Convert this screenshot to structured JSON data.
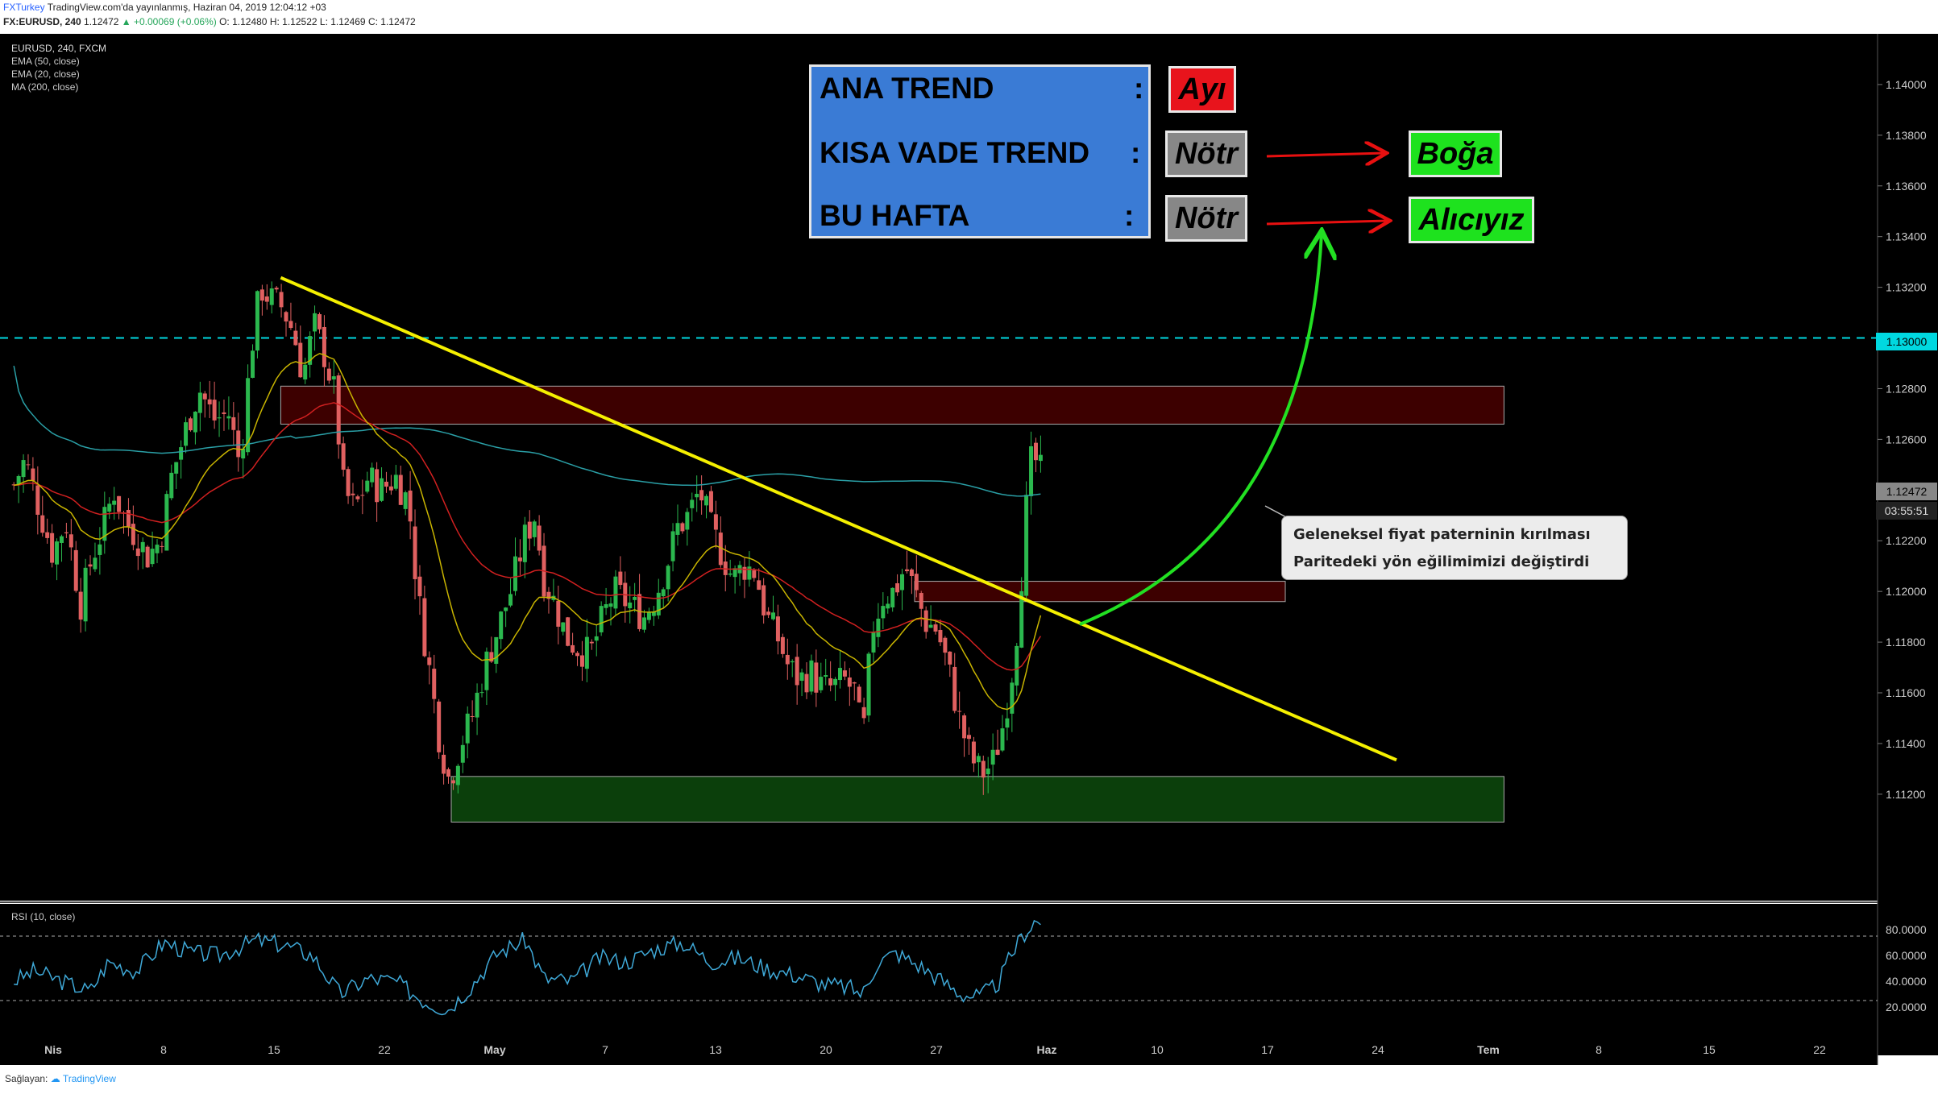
{
  "header": {
    "brand": "FXTurkey",
    "published": "TradingView.com'da yayınlanmış, Haziran 04, 2019 12:04:12 +03",
    "symbol": "FX:EURUSD, 240",
    "ohlc": "1.12472",
    "change": "▲ +0.00069 (+0.06%)",
    "o": "O: 1.12480",
    "h": "H: 1.12522",
    "l": "L: 1.12469",
    "c": "C: 1.12472"
  },
  "legend": {
    "title": "EURUSD, 240, FXCM",
    "ema50": "EMA (50, close)",
    "ema20": "EMA (20, close)",
    "ma200": "MA (200, close)",
    "rsi": "RSI (10, close)"
  },
  "footer": {
    "label": "Sağlayan:",
    "tv": "TradingView"
  },
  "info_box": {
    "rows": [
      {
        "label": "ANA TREND",
        "colon": ":",
        "status": "Ayı",
        "status_color": "#e8141c"
      },
      {
        "label": "KISA VADE TREND",
        "colon": ":",
        "status": "Nötr",
        "status_color": "#878787",
        "target": "Boğa",
        "target_color": "#1ee21e"
      },
      {
        "label": "BU HAFTA",
        "colon": ":",
        "status": "Nötr",
        "status_color": "#878787",
        "target": "Alıcıyız",
        "target_color": "#1ee21e"
      }
    ]
  },
  "annotation": {
    "line1": "Geleneksel fiyat paterninin kırılması",
    "line2": "Paritedeki yön eğilimimizi değiştirdi"
  },
  "price_tags": {
    "level": "1.13000",
    "last": "1.12472",
    "countdown": "03:55:51"
  },
  "colors": {
    "background": "#000000",
    "candle_up": "#2bb84e",
    "candle_down": "#e06060",
    "trendline": "#f5f000",
    "ema50": "#d02020",
    "ema20": "#c8b400",
    "ma200": "#2a9fa6",
    "rsi": "#3fa9d8",
    "resistance_zone": "#3d0000",
    "support_zone": "#0b3f0b",
    "level_line": "#00d8e0",
    "arrow_green": "#22e022",
    "arrow_red": "#e81010"
  },
  "chart_data": {
    "type": "candlestick",
    "symbol": "EURUSD, 240, FXCM",
    "x_ticks": [
      "Nis",
      "8",
      "15",
      "22",
      "May",
      "7",
      "13",
      "20",
      "27",
      "Haz",
      "10",
      "17",
      "24",
      "Tem",
      "8",
      "15",
      "22"
    ],
    "y_ticks": [
      "1.14000",
      "1.13800",
      "1.13600",
      "1.13400",
      "1.13200",
      "1.13000",
      "1.12800",
      "1.12600",
      "1.12400",
      "1.12200",
      "1.12000",
      "1.11800",
      "1.11600",
      "1.11400",
      "1.11200"
    ],
    "ylim": [
      1.1078,
      1.142
    ],
    "rsi_ticks": [
      "80.0000",
      "60.0000",
      "40.0000",
      "20.0000"
    ],
    "rsi_levels": [
      75,
      25
    ],
    "horizontal_level": 1.13,
    "last_price": 1.12472,
    "zones": [
      {
        "name": "resistance",
        "y_low": 1.1266,
        "y_high": 1.1281,
        "x_start": 0.148,
        "x_end": 0.808
      },
      {
        "name": "minor-resistance",
        "y_low": 1.1196,
        "y_high": 1.1204,
        "x_start": 0.49,
        "x_end": 0.69
      },
      {
        "name": "support",
        "y_low": 1.1109,
        "y_high": 1.1127,
        "x_start": 0.24,
        "x_end": 0.808
      }
    ],
    "trendline": {
      "x_start": 0.148,
      "y_start": 1.13238,
      "x_end": 0.75,
      "y_end": 1.11335
    },
    "close_path": [
      [
        0.004,
        1.1242
      ],
      [
        0.01,
        1.1252
      ],
      [
        0.018,
        1.1232
      ],
      [
        0.025,
        1.1215
      ],
      [
        0.032,
        1.1228
      ],
      [
        0.04,
        1.1195
      ],
      [
        0.046,
        1.1213
      ],
      [
        0.052,
        1.1225
      ],
      [
        0.058,
        1.124
      ],
      [
        0.064,
        1.1228
      ],
      [
        0.07,
        1.1222
      ],
      [
        0.076,
        1.1214
      ],
      [
        0.083,
        1.122
      ],
      [
        0.089,
        1.1245
      ],
      [
        0.096,
        1.1262
      ],
      [
        0.104,
        1.128
      ],
      [
        0.112,
        1.1268
      ],
      [
        0.12,
        1.127
      ],
      [
        0.126,
        1.125
      ],
      [
        0.132,
        1.1295
      ],
      [
        0.137,
        1.132
      ],
      [
        0.143,
        1.1315
      ],
      [
        0.149,
        1.1312
      ],
      [
        0.155,
        1.1302
      ],
      [
        0.16,
        1.1285
      ],
      [
        0.166,
        1.1305
      ],
      [
        0.171,
        1.1295
      ],
      [
        0.177,
        1.1278
      ],
      [
        0.182,
        1.124
      ],
      [
        0.188,
        1.1232
      ],
      [
        0.195,
        1.1245
      ],
      [
        0.202,
        1.124
      ],
      [
        0.21,
        1.1245
      ],
      [
        0.217,
        1.1235
      ],
      [
        0.222,
        1.1198
      ],
      [
        0.228,
        1.117
      ],
      [
        0.234,
        1.114
      ],
      [
        0.239,
        1.1125
      ],
      [
        0.245,
        1.114
      ],
      [
        0.251,
        1.115
      ],
      [
        0.258,
        1.117
      ],
      [
        0.265,
        1.1185
      ],
      [
        0.272,
        1.12
      ],
      [
        0.279,
        1.122
      ],
      [
        0.285,
        1.123
      ],
      [
        0.29,
        1.1205
      ],
      [
        0.296,
        1.1195
      ],
      [
        0.302,
        1.1182
      ],
      [
        0.308,
        1.1178
      ],
      [
        0.315,
        1.1175
      ],
      [
        0.322,
        1.119
      ],
      [
        0.328,
        1.12
      ],
      [
        0.336,
        1.1195
      ],
      [
        0.344,
        1.119
      ],
      [
        0.35,
        1.1198
      ],
      [
        0.356,
        1.121
      ],
      [
        0.362,
        1.1225
      ],
      [
        0.368,
        1.123
      ],
      [
        0.374,
        1.124
      ],
      [
        0.38,
        1.1225
      ],
      [
        0.386,
        1.1215
      ],
      [
        0.392,
        1.1205
      ],
      [
        0.398,
        1.121
      ],
      [
        0.404,
        1.1208
      ],
      [
        0.41,
        1.119
      ],
      [
        0.416,
        1.1182
      ],
      [
        0.422,
        1.117
      ],
      [
        0.428,
        1.1165
      ],
      [
        0.434,
        1.1168
      ],
      [
        0.44,
        1.1162
      ],
      [
        0.446,
        1.1162
      ],
      [
        0.452,
        1.1165
      ],
      [
        0.458,
        1.116
      ],
      [
        0.462,
        1.114
      ],
      [
        0.467,
        1.1185
      ],
      [
        0.473,
        1.1198
      ],
      [
        0.479,
        1.12
      ],
      [
        0.485,
        1.121
      ],
      [
        0.49,
        1.12
      ],
      [
        0.496,
        1.1188
      ],
      [
        0.502,
        1.1185
      ],
      [
        0.508,
        1.117
      ],
      [
        0.514,
        1.115
      ],
      [
        0.52,
        1.1135
      ],
      [
        0.526,
        1.1128
      ],
      [
        0.532,
        1.1132
      ],
      [
        0.537,
        1.1145
      ],
      [
        0.542,
        1.1165
      ],
      [
        0.546,
        1.119
      ],
      [
        0.549,
        1.122
      ],
      [
        0.552,
        1.125
      ],
      [
        0.555,
        1.1252
      ],
      [
        0.558,
        1.1247
      ]
    ],
    "rsi_path": [
      [
        0.004,
        40
      ],
      [
        0.015,
        48
      ],
      [
        0.03,
        40
      ],
      [
        0.045,
        32
      ],
      [
        0.055,
        55
      ],
      [
        0.07,
        48
      ],
      [
        0.085,
        70
      ],
      [
        0.1,
        62
      ],
      [
        0.115,
        60
      ],
      [
        0.135,
        72
      ],
      [
        0.15,
        68
      ],
      [
        0.165,
        60
      ],
      [
        0.18,
        30
      ],
      [
        0.195,
        42
      ],
      [
        0.21,
        40
      ],
      [
        0.225,
        25
      ],
      [
        0.238,
        18
      ],
      [
        0.25,
        35
      ],
      [
        0.265,
        62
      ],
      [
        0.28,
        72
      ],
      [
        0.29,
        42
      ],
      [
        0.305,
        40
      ],
      [
        0.32,
        58
      ],
      [
        0.335,
        55
      ],
      [
        0.35,
        65
      ],
      [
        0.365,
        70
      ],
      [
        0.38,
        55
      ],
      [
        0.395,
        58
      ],
      [
        0.41,
        50
      ],
      [
        0.425,
        45
      ],
      [
        0.44,
        38
      ],
      [
        0.455,
        35
      ],
      [
        0.462,
        30
      ],
      [
        0.47,
        55
      ],
      [
        0.48,
        62
      ],
      [
        0.495,
        50
      ],
      [
        0.505,
        40
      ],
      [
        0.515,
        30
      ],
      [
        0.525,
        28
      ],
      [
        0.535,
        38
      ],
      [
        0.542,
        60
      ],
      [
        0.548,
        75
      ],
      [
        0.555,
        87
      ],
      [
        0.558,
        85
      ]
    ]
  }
}
